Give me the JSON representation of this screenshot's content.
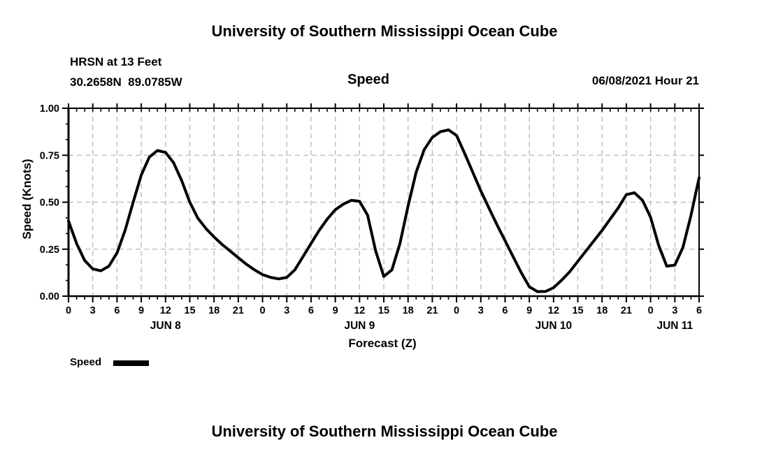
{
  "titles": {
    "top": "University of Southern Mississippi Ocean Cube",
    "bottom": "University of Southern Mississippi Ocean Cube"
  },
  "header": {
    "station": "HRSN at 13 Feet",
    "coords": "30.2658N  89.0785W",
    "center_title": "Speed",
    "datetime": "06/08/2021 Hour 21"
  },
  "legend": {
    "label": "Speed",
    "swatch": "thick-black-line"
  },
  "chart_data": {
    "type": "line",
    "title": "Speed",
    "xlabel": "Forecast (Z)",
    "ylabel": "Speed (Knots)",
    "ylim": [
      0.0,
      1.0
    ],
    "yticks": [
      0.0,
      0.25,
      0.5,
      0.75,
      1.0
    ],
    "ytick_labels": [
      "0.00",
      "0.25",
      "0.50",
      "0.75",
      "1.00"
    ],
    "xlim_hours": [
      0,
      78
    ],
    "xtick_step_hours": 3,
    "xminor_step_hours": 1,
    "xtick_labels": [
      "0",
      "3",
      "6",
      "9",
      "12",
      "15",
      "18",
      "21",
      "0",
      "3",
      "6",
      "9",
      "12",
      "15",
      "18",
      "21",
      "0",
      "3",
      "6",
      "9",
      "12",
      "15",
      "18",
      "21",
      "0",
      "3",
      "6"
    ],
    "day_labels": [
      {
        "label": "JUN 8",
        "hour": 12
      },
      {
        "label": "JUN 9",
        "hour": 36
      },
      {
        "label": "JUN 10",
        "hour": 60
      },
      {
        "label": "JUN 11",
        "hour": 75
      }
    ],
    "grid": "dashed-gray-both-axes",
    "legend_position": "bottom-left",
    "colors": {
      "line": "#000000",
      "grid": "#b9b9b9",
      "frame": "#000000",
      "text": "#000000",
      "background": "#ffffff"
    },
    "series": [
      {
        "name": "Speed",
        "units": "Knots",
        "x_hours": [
          0,
          1,
          2,
          3,
          4,
          5,
          6,
          7,
          8,
          9,
          10,
          11,
          12,
          13,
          14,
          15,
          16,
          17,
          18,
          19,
          20,
          21,
          22,
          23,
          24,
          25,
          26,
          27,
          28,
          29,
          30,
          31,
          32,
          33,
          34,
          35,
          36,
          37,
          38,
          39,
          40,
          41,
          42,
          43,
          44,
          45,
          46,
          47,
          48,
          49,
          50,
          51,
          52,
          53,
          54,
          55,
          56,
          57,
          58,
          59,
          60,
          61,
          62,
          63,
          64,
          65,
          66,
          67,
          68,
          69,
          70,
          71,
          72,
          73,
          74,
          75,
          76,
          77,
          78
        ],
        "y_knots": [
          0.4,
          0.28,
          0.19,
          0.145,
          0.135,
          0.16,
          0.23,
          0.35,
          0.5,
          0.645,
          0.74,
          0.775,
          0.765,
          0.71,
          0.615,
          0.5,
          0.415,
          0.36,
          0.315,
          0.275,
          0.24,
          0.205,
          0.17,
          0.14,
          0.115,
          0.1,
          0.092,
          0.1,
          0.14,
          0.21,
          0.28,
          0.35,
          0.41,
          0.46,
          0.49,
          0.51,
          0.505,
          0.43,
          0.24,
          0.105,
          0.14,
          0.28,
          0.48,
          0.66,
          0.78,
          0.845,
          0.875,
          0.885,
          0.855,
          0.76,
          0.66,
          0.56,
          0.47,
          0.38,
          0.295,
          0.21,
          0.125,
          0.05,
          0.024,
          0.025,
          0.045,
          0.085,
          0.13,
          0.185,
          0.24,
          0.295,
          0.35,
          0.41,
          0.47,
          0.54,
          0.55,
          0.51,
          0.42,
          0.27,
          0.16,
          0.165,
          0.26,
          0.43,
          0.63
        ]
      }
    ]
  }
}
